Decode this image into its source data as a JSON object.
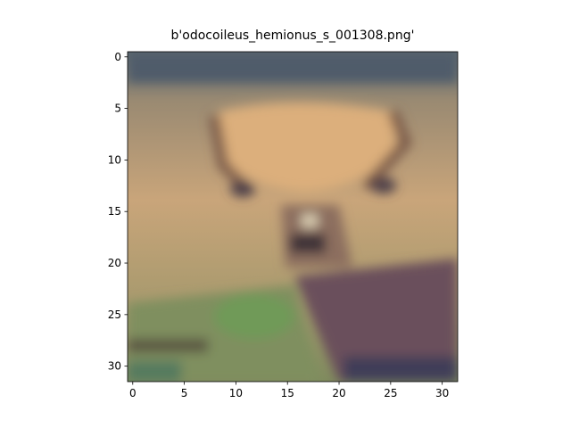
{
  "chart_data": {
    "type": "image",
    "title": "b'odocoileus_hemionus_s_001308.png'",
    "xlim": [
      -0.5,
      31.5
    ],
    "ylim": [
      31.5,
      -0.5
    ],
    "xticks": [
      0,
      5,
      10,
      15,
      20,
      25,
      30
    ],
    "yticks": [
      0,
      5,
      10,
      15,
      20,
      25,
      30
    ]
  }
}
